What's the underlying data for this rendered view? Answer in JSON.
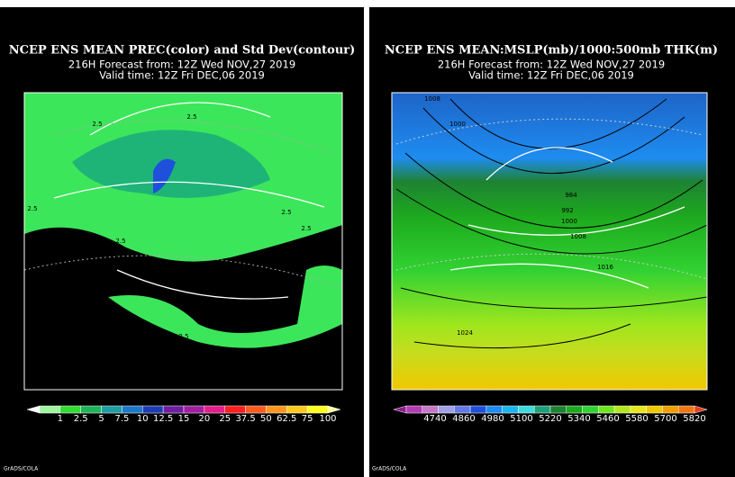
{
  "panels": [
    {
      "title": "NCEP ENS MEAN PREC(color) and Std Dev(contour)",
      "line2": "216H Forecast from: 12Z Wed NOV,27 2019",
      "line3": "Valid time: 12Z Fri DEC,06 2019",
      "contour_labels": [
        "2.5",
        "2.5",
        "2.5",
        "2.5",
        "2.5",
        "2.5",
        "2.5",
        "2.5",
        "2.5",
        "2.5"
      ],
      "colorbar": {
        "labels": [
          "1",
          "2.5",
          "5",
          "7.5",
          "10",
          "12.5",
          "15",
          "20",
          "25",
          "37.5",
          "50",
          "62.5",
          "75",
          "100"
        ],
        "colors": [
          "#ffffff",
          "#a0f5a0",
          "#32dc32",
          "#1eb45a",
          "#1e9ea0",
          "#1e78c8",
          "#1e3cb4",
          "#6e1ea0",
          "#a01ea0",
          "#e61e8c",
          "#ff1e1e",
          "#ff5a1e",
          "#ff961e",
          "#ffc81e",
          "#ffff1e",
          "#ffffa0"
        ]
      },
      "credit": "GrADS/COLA"
    },
    {
      "title": "NCEP ENS MEAN:MSLP(mb)/1000:500mb THK(m)",
      "line2": "216H Forecast from: 12Z Wed NOV,27 2019",
      "line3": "Valid time: 12Z Fri DEC,06 2019",
      "contour_labels": [
        "1008",
        "1000",
        "984",
        "992",
        "1000",
        "1008",
        "1016",
        "1024"
      ],
      "colorbar": {
        "labels": [
          "4740",
          "4860",
          "4980",
          "5100",
          "5220",
          "5340",
          "5460",
          "5580",
          "5700",
          "5820"
        ],
        "colors": [
          "#8c1e8c",
          "#b43cb4",
          "#c878c8",
          "#a0a0e6",
          "#6478e6",
          "#1e50dc",
          "#1e8cf0",
          "#1eb4f0",
          "#3cdcdc",
          "#1ea078",
          "#1e8232",
          "#1eaa1e",
          "#32d232",
          "#6ee61e",
          "#b4e61e",
          "#e6e61e",
          "#f0c800",
          "#f0a000",
          "#f07814",
          "#e63c1e"
        ]
      },
      "credit": "GrADS/COLA"
    }
  ]
}
